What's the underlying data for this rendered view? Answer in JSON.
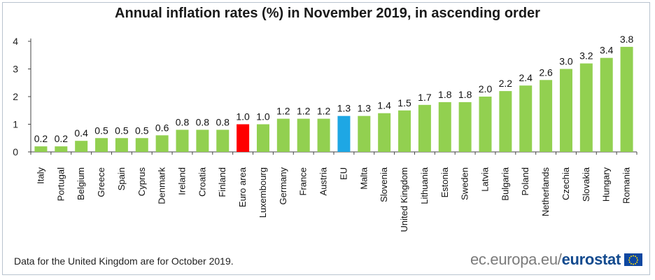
{
  "chart_data": {
    "type": "bar",
    "title": "Annual inflation rates (%) in November 2019, in ascending order",
    "categories": [
      "Italy",
      "Portugal",
      "Belgium",
      "Greece",
      "Spain",
      "Cyprus",
      "Denmark",
      "Ireland",
      "Croatia",
      "Finland",
      "Euro area",
      "Luxembourg",
      "Germany",
      "France",
      "Austria",
      "EU",
      "Malta",
      "Slovenia",
      "United Kingdom",
      "Lithuania",
      "Estonia",
      "Sweden",
      "Latvia",
      "Bulgaria",
      "Poland",
      "Netherlands",
      "Czechia",
      "Slovakia",
      "Hungary",
      "Romania"
    ],
    "values": [
      0.2,
      0.2,
      0.4,
      0.5,
      0.5,
      0.5,
      0.6,
      0.8,
      0.8,
      0.8,
      1.0,
      1.0,
      1.2,
      1.2,
      1.2,
      1.3,
      1.3,
      1.4,
      1.5,
      1.7,
      1.8,
      1.8,
      2.0,
      2.2,
      2.4,
      2.6,
      3.0,
      3.2,
      3.4,
      3.8
    ],
    "value_labels": [
      "0.2",
      "0.2",
      "0.4",
      "0.5",
      "0.5",
      "0.5",
      "0.6",
      "0.8",
      "0.8",
      "0.8",
      "1.0",
      "1.0",
      "1.2",
      "1.2",
      "1.2",
      "1.3",
      "1.3",
      "1.4",
      "1.5",
      "1.7",
      "1.8",
      "1.8",
      "2.0",
      "2.2",
      "2.4",
      "2.6",
      "3.0",
      "3.2",
      "3.4",
      "3.8"
    ],
    "highlight": {
      "Euro area": "#ff0000",
      "EU": "#1ea7e4"
    },
    "default_color": "#92d050",
    "ylim": [
      0,
      4
    ],
    "yticks": [
      "0",
      "1",
      "2",
      "3",
      "4"
    ],
    "xlabel": "",
    "ylabel": "",
    "grid": false,
    "legend": "none"
  },
  "footnote": "Data for the United Kingdom are for October 2019.",
  "logo": {
    "domain": "ec.europa.eu/",
    "brand": "eurostat",
    "icon": "eu-flag-icon"
  }
}
